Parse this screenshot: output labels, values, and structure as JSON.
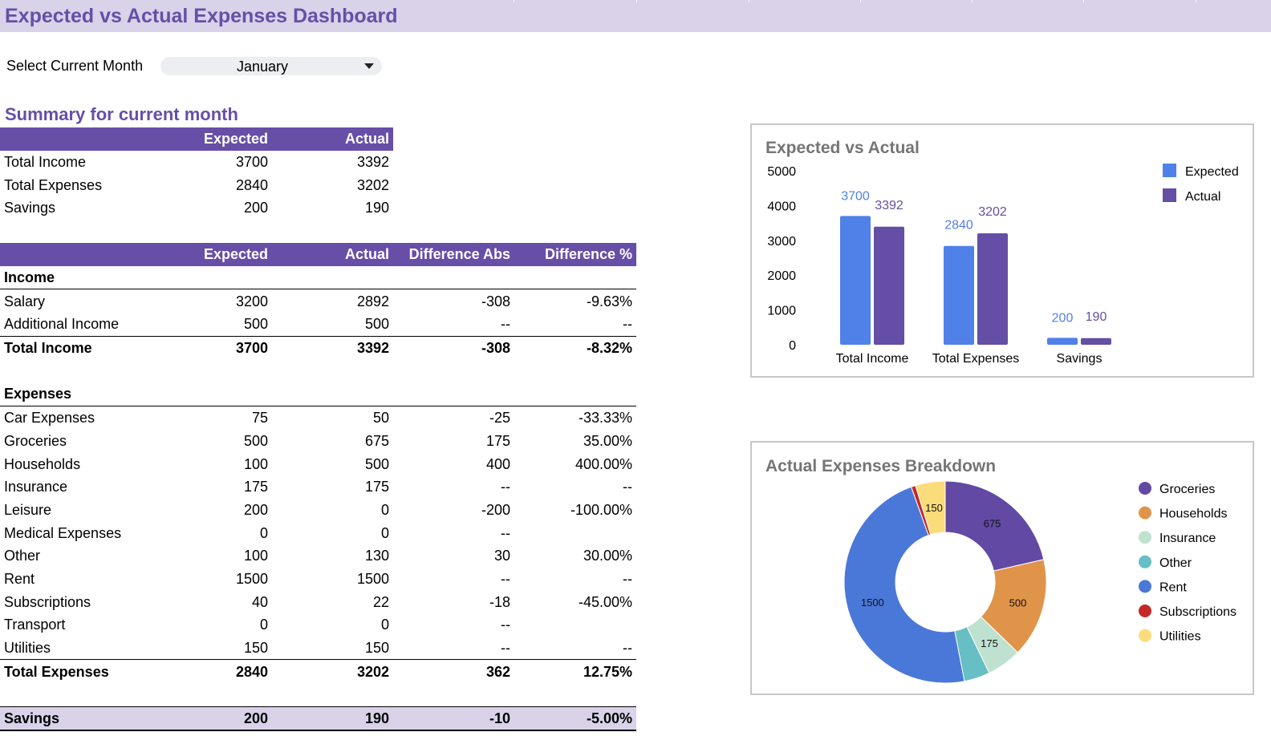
{
  "title": "Expected vs Actual Expenses Dashboard",
  "month_selector": {
    "label": "Select Current Month",
    "value": "January"
  },
  "summary": {
    "heading": "Summary for current month",
    "columns": [
      "",
      "Expected",
      "Actual"
    ],
    "rows": [
      {
        "label": "Total Income",
        "expected": "3700",
        "actual": "3392"
      },
      {
        "label": "Total Expenses",
        "expected": "2840",
        "actual": "3202"
      },
      {
        "label": "Savings",
        "expected": "200",
        "actual": "190"
      }
    ]
  },
  "detail": {
    "columns": [
      "",
      "Expected",
      "Actual",
      "Difference Abs",
      "Difference %"
    ],
    "income_heading": "Income",
    "income_rows": [
      {
        "label": "Salary",
        "expected": "3200",
        "actual": "2892",
        "diff_abs": "-308",
        "diff_pct": "-9.63%"
      },
      {
        "label": "Additional Income",
        "expected": "500",
        "actual": "500",
        "diff_abs": "--",
        "diff_pct": "--"
      }
    ],
    "income_total": {
      "label": "Total Income",
      "expected": "3700",
      "actual": "3392",
      "diff_abs": "-308",
      "diff_pct": "-8.32%"
    },
    "expenses_heading": "Expenses",
    "expense_rows": [
      {
        "label": "Car Expenses",
        "expected": "75",
        "actual": "50",
        "diff_abs": "-25",
        "diff_pct": "-33.33%"
      },
      {
        "label": "Groceries",
        "expected": "500",
        "actual": "675",
        "diff_abs": "175",
        "diff_pct": "35.00%"
      },
      {
        "label": "Households",
        "expected": "100",
        "actual": "500",
        "diff_abs": "400",
        "diff_pct": "400.00%"
      },
      {
        "label": "Insurance",
        "expected": "175",
        "actual": "175",
        "diff_abs": "--",
        "diff_pct": "--"
      },
      {
        "label": "Leisure",
        "expected": "200",
        "actual": "0",
        "diff_abs": "-200",
        "diff_pct": "-100.00%"
      },
      {
        "label": "Medical Expenses",
        "expected": "0",
        "actual": "0",
        "diff_abs": "--",
        "diff_pct": ""
      },
      {
        "label": "Other",
        "expected": "100",
        "actual": "130",
        "diff_abs": "30",
        "diff_pct": "30.00%"
      },
      {
        "label": "Rent",
        "expected": "1500",
        "actual": "1500",
        "diff_abs": "--",
        "diff_pct": "--"
      },
      {
        "label": "Subscriptions",
        "expected": "40",
        "actual": "22",
        "diff_abs": "-18",
        "diff_pct": "-45.00%"
      },
      {
        "label": "Transport",
        "expected": "0",
        "actual": "0",
        "diff_abs": "--",
        "diff_pct": ""
      },
      {
        "label": "Utilities",
        "expected": "150",
        "actual": "150",
        "diff_abs": "--",
        "diff_pct": "--"
      }
    ],
    "expense_total": {
      "label": "Total Expenses",
      "expected": "2840",
      "actual": "3202",
      "diff_abs": "362",
      "diff_pct": "12.75%"
    },
    "savings": {
      "label": "Savings",
      "expected": "200",
      "actual": "190",
      "diff_abs": "-10",
      "diff_pct": "-5.00%"
    }
  },
  "colors": {
    "accent": "#674ea7",
    "header_light": "#d9d2e9",
    "expected": "#4f81e8",
    "actual": "#644ea6",
    "groceries": "#6249a3",
    "households": "#e0944a",
    "insurance": "#bfe2d0",
    "other": "#66bfc4",
    "rent": "#4a78d8",
    "subscriptions": "#c62828",
    "utilities": "#fbdc7a"
  },
  "chart_data": [
    {
      "type": "bar",
      "title": "Expected vs Actual",
      "categories": [
        "Total Income",
        "Total Expenses",
        "Savings"
      ],
      "series": [
        {
          "name": "Expected",
          "values": [
            3700,
            2840,
            200
          ],
          "color": "#4f81e8"
        },
        {
          "name": "Actual",
          "values": [
            3392,
            3202,
            190
          ],
          "color": "#644ea6"
        }
      ],
      "ylim": [
        0,
        5000
      ],
      "yticks": [
        "0",
        "1000",
        "2000",
        "3000",
        "4000",
        "5000"
      ],
      "legend": "top-right"
    },
    {
      "type": "pie",
      "title": "Actual Expenses Breakdown",
      "donut": true,
      "slices": [
        {
          "label": "Groceries",
          "value": 675,
          "color": "#6249a3",
          "shown": "675"
        },
        {
          "label": "Households",
          "value": 500,
          "color": "#e0944a",
          "shown": "500"
        },
        {
          "label": "Insurance",
          "value": 175,
          "color": "#bfe2d0",
          "shown": "175"
        },
        {
          "label": "Other",
          "value": 130,
          "color": "#66bfc4",
          "shown": ""
        },
        {
          "label": "Rent",
          "value": 1500,
          "color": "#4a78d8",
          "shown": "1500"
        },
        {
          "label": "Subscriptions",
          "value": 22,
          "color": "#c62828",
          "shown": ""
        },
        {
          "label": "Utilities",
          "value": 150,
          "color": "#fbdc7a",
          "shown": "150"
        }
      ],
      "legend": "right"
    }
  ]
}
